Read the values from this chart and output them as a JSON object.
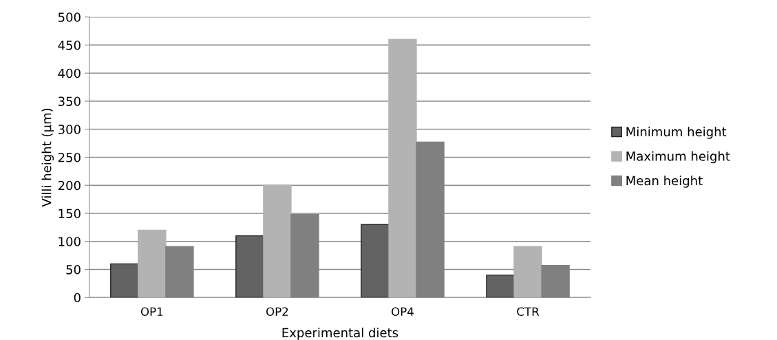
{
  "chart_data": {
    "type": "bar",
    "xlabel": "Experimental diets",
    "ylabel": "Villi height (µm)",
    "categories": [
      "OP1",
      "OP2",
      "OP4",
      "CTR"
    ],
    "series": [
      {
        "name": "Minimum height",
        "color": "#636363",
        "values": [
          60,
          110,
          130,
          40
        ]
      },
      {
        "name": "Maximum height",
        "color": "#b3b3b3",
        "values": [
          120,
          200,
          460,
          91
        ]
      },
      {
        "name": "Mean height",
        "color": "#808080",
        "values": [
          91,
          148,
          277,
          57
        ]
      }
    ],
    "ylim": [
      0,
      500
    ],
    "yticks": [
      0,
      50,
      100,
      150,
      200,
      250,
      300,
      350,
      400,
      450,
      500
    ],
    "grid": "y",
    "legend": "right"
  }
}
